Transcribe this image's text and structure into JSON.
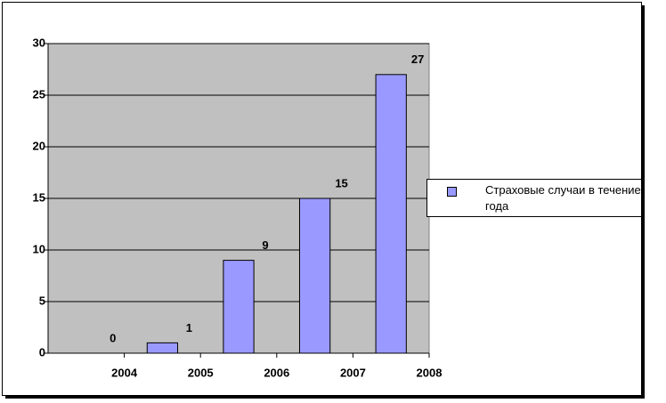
{
  "chart_data": {
    "type": "bar",
    "categories": [
      "2004",
      "2005",
      "2006",
      "2007",
      "2008"
    ],
    "series": [
      {
        "name": "Страховые случаи в течение года",
        "color": "#9999ff",
        "values": [
          0,
          1,
          9,
          15,
          27
        ]
      }
    ],
    "ylim": [
      0,
      30
    ],
    "yticks": [
      0,
      5,
      10,
      15,
      20,
      25,
      30
    ],
    "grid": true,
    "legend": "right"
  }
}
